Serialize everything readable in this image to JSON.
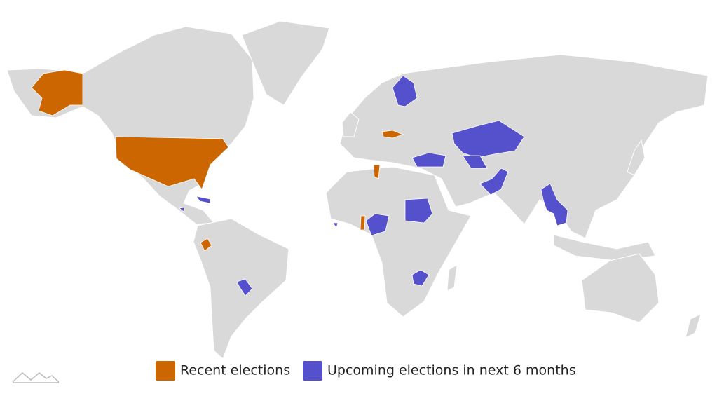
{
  "legend": {
    "items": [
      {
        "label": "Recent elections",
        "color": "#cc6600"
      },
      {
        "label": "Upcoming elections in next 6 months",
        "color": "#5551cc"
      }
    ]
  }
}
